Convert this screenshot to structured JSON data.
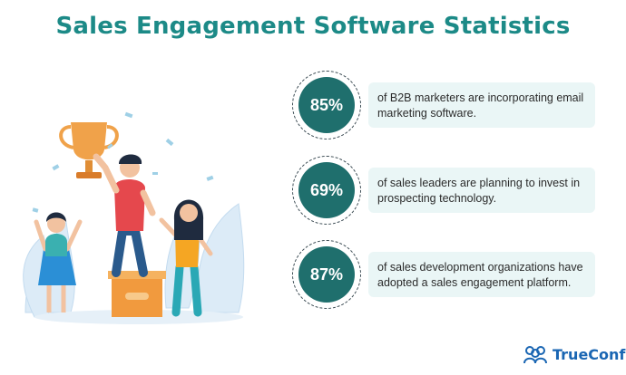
{
  "title": "Sales Engagement Software Statistics",
  "colors": {
    "accent": "#1c8a87",
    "circle": "#1f6f6d",
    "card": "#eaf6f6",
    "brand": "#1a66b3"
  },
  "stats": [
    {
      "value": "85%",
      "text": "of B2B marketers are incorporating email marketing software."
    },
    {
      "value": "69%",
      "text": "of sales leaders are planning to invest in prospecting technology."
    },
    {
      "value": "87%",
      "text": "of sales development organizations have adopted a sales engagement platform."
    }
  ],
  "logo": {
    "name": "TrueConf",
    "icon": "people-group-icon"
  },
  "illustration": {
    "icon": "winners-podium-trophy-illustration"
  }
}
